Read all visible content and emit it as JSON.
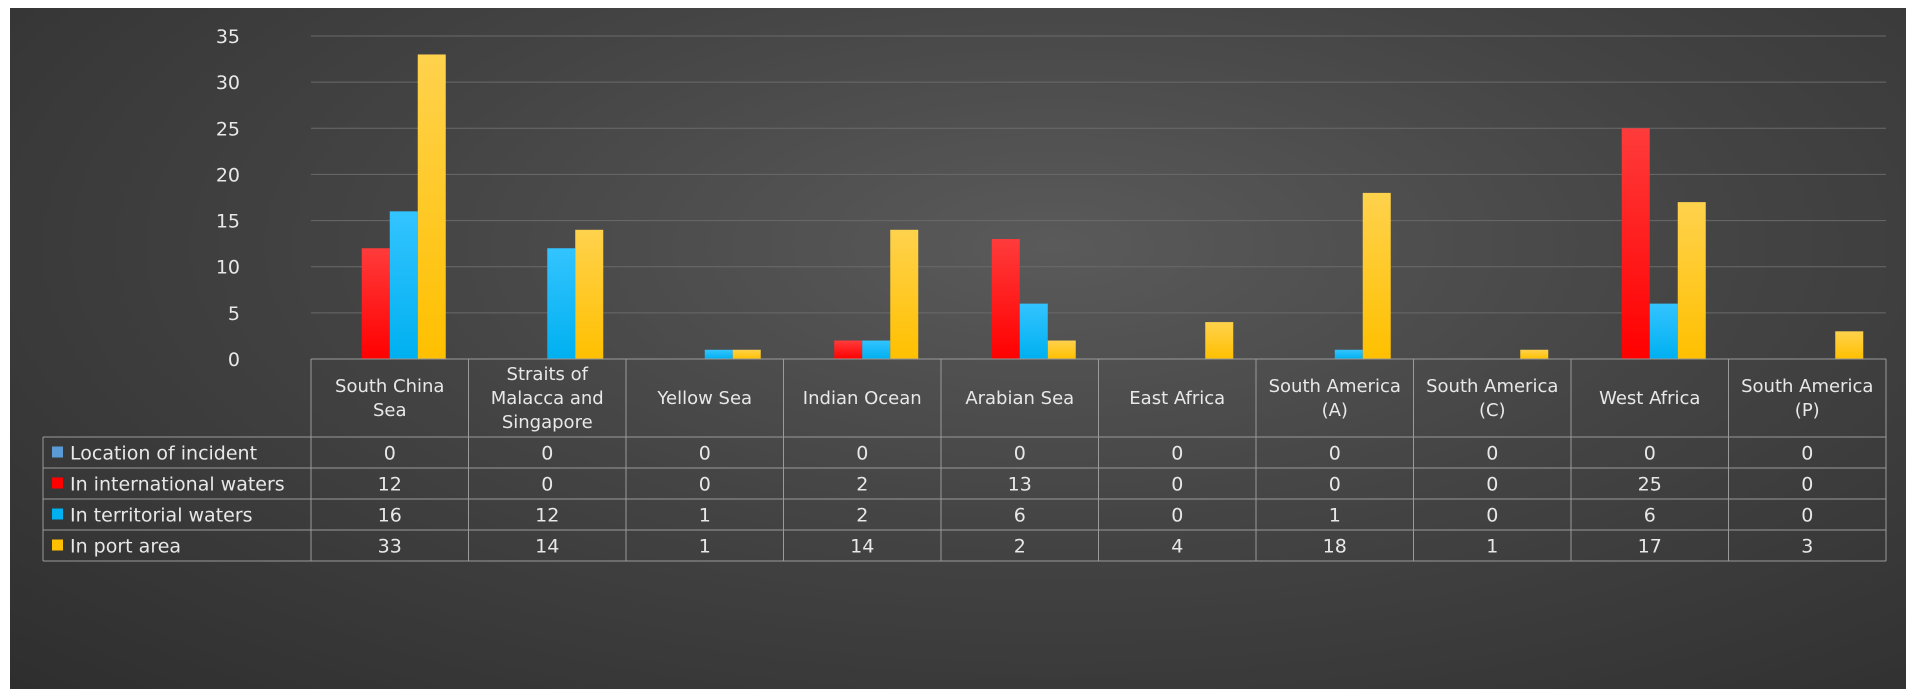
{
  "chart_data": {
    "type": "bar",
    "title": "",
    "xlabel": "",
    "ylabel": "",
    "ylim": [
      0,
      35
    ],
    "yticks": [
      0,
      5,
      10,
      15,
      20,
      25,
      30,
      35
    ],
    "grid": true,
    "legend": "data-table",
    "categories": [
      [
        "South China",
        "Sea"
      ],
      [
        "Straits of",
        "Malacca and",
        "Singapore"
      ],
      [
        "Yellow Sea"
      ],
      [
        "Indian Ocean"
      ],
      [
        "Arabian Sea"
      ],
      [
        "East Africa"
      ],
      [
        "South America",
        "(A)"
      ],
      [
        "South America",
        "(C)"
      ],
      [
        "West Africa"
      ],
      [
        "South America",
        "(P)"
      ]
    ],
    "series": [
      {
        "name": "Location of incident",
        "color": "#5b9bd5",
        "values": [
          0,
          0,
          0,
          0,
          0,
          0,
          0,
          0,
          0,
          0
        ]
      },
      {
        "name": "In international waters",
        "color": "#ff0000",
        "values": [
          12,
          0,
          0,
          2,
          13,
          0,
          0,
          0,
          25,
          0
        ]
      },
      {
        "name": "In territorial waters",
        "color": "#00b0f0",
        "values": [
          16,
          12,
          1,
          2,
          6,
          0,
          1,
          0,
          6,
          0
        ]
      },
      {
        "name": "In port area",
        "color": "#ffc000",
        "values": [
          33,
          14,
          1,
          14,
          2,
          4,
          18,
          1,
          17,
          3
        ]
      }
    ]
  }
}
